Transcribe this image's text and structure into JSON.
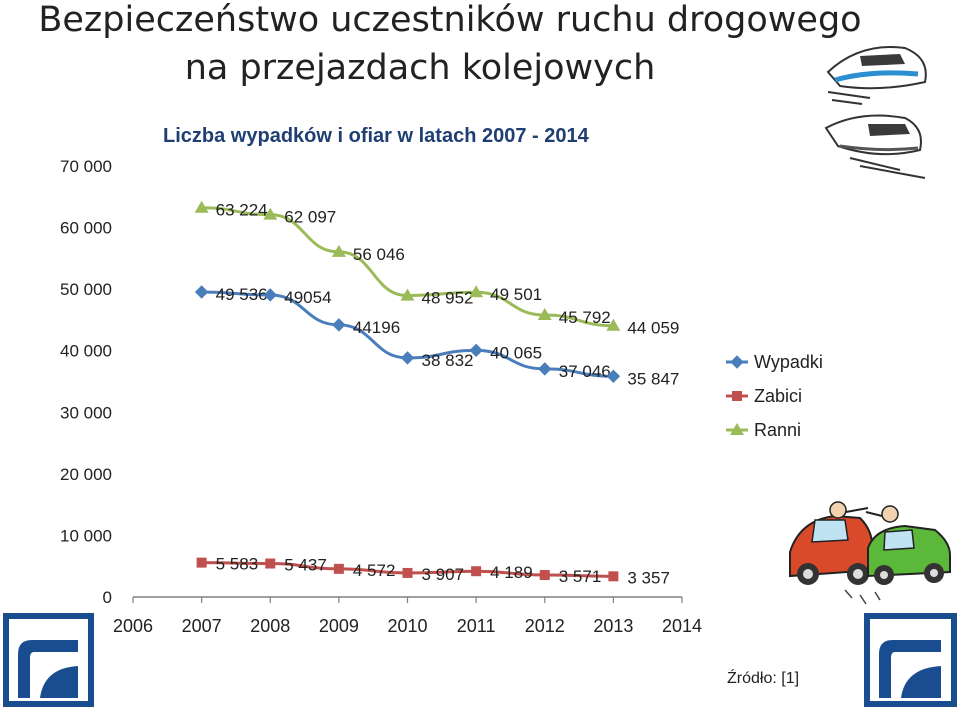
{
  "heading": {
    "line1": "Bezpieczeństwo uczestników ruchu drogowego",
    "line2": "na przejazdach kolejowych"
  },
  "source": "Źródło: [1]",
  "chart_data": {
    "type": "line",
    "title": "Liczba wypadków i ofiar w latach 2007 - 2014",
    "xlabel": "",
    "ylabel": "",
    "x": [
      2007,
      2008,
      2009,
      2010,
      2011,
      2012,
      2013
    ],
    "xticks": [
      "2006",
      "2007",
      "2008",
      "2009",
      "2010",
      "2011",
      "2012",
      "2013",
      "2014"
    ],
    "xlim": [
      2006,
      2014
    ],
    "ylim": [
      0,
      70000
    ],
    "yticks": [
      "0",
      "10 000",
      "20 000",
      "30 000",
      "40 000",
      "50 000",
      "60 000",
      "70 000"
    ],
    "grid": false,
    "legend": "right",
    "series": [
      {
        "name": "Wypadki",
        "color": "#4a7ebb",
        "marker": "diamond",
        "values": [
          49536,
          49054,
          44196,
          38832,
          40065,
          37046,
          35847
        ],
        "labels": [
          "49 536",
          "49054",
          "44196",
          "38 832",
          "40 065",
          "37 046",
          "35 847"
        ]
      },
      {
        "name": "Zabici",
        "color": "#c0504d",
        "marker": "square",
        "values": [
          5583,
          5437,
          4572,
          3907,
          4189,
          3571,
          3357
        ],
        "labels": [
          "5 583",
          "5 437",
          "4 572",
          "3 907",
          "4 189",
          "3 571",
          "3 357"
        ]
      },
      {
        "name": "Ranni",
        "color": "#9bbb59",
        "marker": "triangle",
        "values": [
          63224,
          62097,
          56046,
          48952,
          49501,
          45792,
          44059
        ],
        "labels": [
          "63 224",
          "62 097",
          "56 046",
          "48 952",
          "49 501",
          "45 792",
          "44 059"
        ]
      }
    ]
  }
}
